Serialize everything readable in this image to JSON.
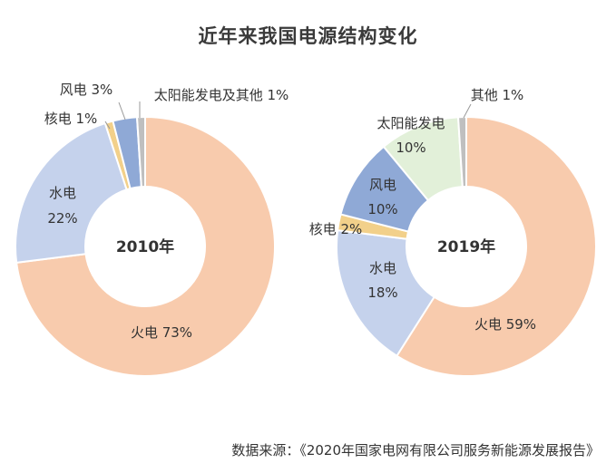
{
  "title": "近年来我国电源结构变化",
  "source": "数据来源：《2020年国家电网有限公司服务新能源发展报告》",
  "chart_data": [
    {
      "type": "pie",
      "center_label": "2010年",
      "slices": [
        {
          "name": "火电",
          "value": 73,
          "pct_label": "73%",
          "color": "#f8cbad"
        },
        {
          "name": "水电",
          "value": 22,
          "pct_label": "22%",
          "color": "#c5d2ec"
        },
        {
          "name": "核电",
          "value": 1,
          "pct_label": "1%",
          "color": "#f2d08a"
        },
        {
          "name": "风电",
          "value": 3,
          "pct_label": "3%",
          "color": "#8fa9d6"
        },
        {
          "name": "太阳能发电及其他",
          "value": 1,
          "pct_label": "1%",
          "color": "#bfbfbf"
        }
      ]
    },
    {
      "type": "pie",
      "center_label": "2019年",
      "slices": [
        {
          "name": "火电",
          "value": 59,
          "pct_label": "59%",
          "color": "#f8cbad"
        },
        {
          "name": "水电",
          "value": 18,
          "pct_label": "18%",
          "color": "#c5d2ec"
        },
        {
          "name": "核电",
          "value": 2,
          "pct_label": "2%",
          "color": "#f2d08a"
        },
        {
          "name": "风电",
          "value": 10,
          "pct_label": "10%",
          "color": "#8fa9d6"
        },
        {
          "name": "太阳能发电",
          "value": 10,
          "pct_label": "10%",
          "color": "#e2f0d9"
        },
        {
          "name": "其他",
          "value": 1,
          "pct_label": "1%",
          "color": "#bfbfbf"
        }
      ]
    }
  ]
}
